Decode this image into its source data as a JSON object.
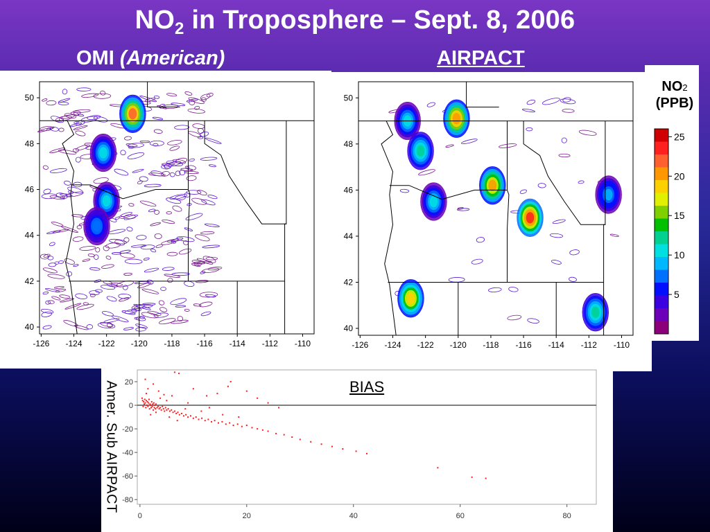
{
  "slide": {
    "title_main": "NO",
    "title_sub": "2",
    "title_rest": " in Troposphere – Sept. 8, 2006",
    "left_label_main": "OMI ",
    "left_label_em": "(American)",
    "right_label": "AIRPACT"
  },
  "colorbar": {
    "title_main": "NO",
    "title_sub": "2",
    "units": "(PPB)",
    "ticks": [
      "25",
      "20",
      "15",
      "10",
      "5"
    ],
    "tick_values": [
      25,
      20,
      15,
      10,
      5
    ],
    "range": [
      0,
      26
    ],
    "colors": [
      "#8c007a",
      "#6b00b8",
      "#3a00e0",
      "#0010ff",
      "#0070ff",
      "#00b8ff",
      "#00e0e0",
      "#00d090",
      "#00c000",
      "#80d000",
      "#e0f000",
      "#ffd000",
      "#ff9800",
      "#ff6030",
      "#ff2020",
      "#d00000"
    ]
  },
  "chart_data": [
    {
      "type": "heatmap",
      "panel": "OMI (American)",
      "xticks": [
        "-126",
        "-124",
        "-122",
        "-120",
        "-118",
        "-116",
        "-114",
        "-112",
        "-110"
      ],
      "yticks": [
        "50",
        "48",
        "46",
        "44",
        "42",
        "40"
      ],
      "xlim": [
        -126.1,
        -109.3
      ],
      "ylim": [
        39.7,
        50.7
      ],
      "hotspots": [
        {
          "lon": -120.4,
          "lat": 49.3,
          "value": 22
        },
        {
          "lon": -122.2,
          "lat": 47.6,
          "value": 11
        },
        {
          "lon": -122.0,
          "lat": 45.5,
          "value": 10
        },
        {
          "lon": -122.6,
          "lat": 44.4,
          "value": 8
        }
      ]
    },
    {
      "type": "heatmap",
      "panel": "AIRPACT",
      "xticks": [
        "-126",
        "-124",
        "-122",
        "-120",
        "-118",
        "-116",
        "-114",
        "-112",
        "-110"
      ],
      "yticks": [
        "50",
        "48",
        "46",
        "44",
        "42",
        "40"
      ],
      "xlim": [
        -126.1,
        -109.3
      ],
      "ylim": [
        39.7,
        50.7
      ],
      "hotspots": [
        {
          "lon": -120.1,
          "lat": 49.1,
          "value": 21
        },
        {
          "lon": -123.1,
          "lat": 49.0,
          "value": 10
        },
        {
          "lon": -122.3,
          "lat": 47.7,
          "value": 12
        },
        {
          "lon": -121.5,
          "lat": 45.5,
          "value": 11
        },
        {
          "lon": -117.9,
          "lat": 46.2,
          "value": 20
        },
        {
          "lon": -115.6,
          "lat": 44.8,
          "value": 24
        },
        {
          "lon": -122.9,
          "lat": 41.3,
          "value": 19
        },
        {
          "lon": -111.6,
          "lat": 40.7,
          "value": 12
        },
        {
          "lon": -110.8,
          "lat": 45.8,
          "value": 9
        }
      ]
    },
    {
      "type": "scatter",
      "title": "BIAS",
      "ylabel": "Amer. Sub AIRPACT",
      "xticks": [
        "0",
        "20",
        "40",
        "60",
        "80"
      ],
      "yticks": [
        "20",
        "0",
        "-20",
        "-40",
        "-60",
        "-80"
      ],
      "xlim": [
        -0.5,
        85.5
      ],
      "ylim": [
        -84,
        30
      ],
      "hline": 0,
      "points": [
        [
          0.4,
          6
        ],
        [
          0.5,
          4
        ],
        [
          0.6,
          -1
        ],
        [
          0.7,
          3
        ],
        [
          0.8,
          1
        ],
        [
          0.9,
          5
        ],
        [
          1.0,
          2
        ],
        [
          1.1,
          -2
        ],
        [
          1.2,
          4
        ],
        [
          1.3,
          0
        ],
        [
          1.4,
          3
        ],
        [
          1.5,
          -1
        ],
        [
          1.6,
          2
        ],
        [
          1.7,
          5
        ],
        [
          1.8,
          -3
        ],
        [
          1.9,
          1
        ],
        [
          2.0,
          0
        ],
        [
          2.1,
          -2
        ],
        [
          2.2,
          3
        ],
        [
          2.3,
          -1
        ],
        [
          2.4,
          1
        ],
        [
          2.5,
          -4
        ],
        [
          2.6,
          2
        ],
        [
          2.7,
          -2
        ],
        [
          2.8,
          0
        ],
        [
          2.9,
          -3
        ],
        [
          3.0,
          1
        ],
        [
          3.2,
          -2
        ],
        [
          3.4,
          -1
        ],
        [
          3.6,
          -3
        ],
        [
          3.8,
          -2
        ],
        [
          4.0,
          -4
        ],
        [
          4.2,
          -1
        ],
        [
          4.4,
          -3
        ],
        [
          4.6,
          -5
        ],
        [
          4.8,
          -2
        ],
        [
          5.0,
          -4
        ],
        [
          5.3,
          -3
        ],
        [
          5.6,
          -5
        ],
        [
          5.9,
          -4
        ],
        [
          6.2,
          -6
        ],
        [
          6.5,
          -5
        ],
        [
          6.8,
          -7
        ],
        [
          7.1,
          -6
        ],
        [
          7.4,
          -8
        ],
        [
          7.8,
          -7
        ],
        [
          8.2,
          -9
        ],
        [
          8.6,
          -8
        ],
        [
          9.0,
          -10
        ],
        [
          9.5,
          -9
        ],
        [
          10.0,
          -11
        ],
        [
          10.5,
          -10
        ],
        [
          11.0,
          -12
        ],
        [
          11.6,
          -11
        ],
        [
          12.2,
          -13
        ],
        [
          12.8,
          -12
        ],
        [
          13.4,
          -14
        ],
        [
          14.0,
          -13
        ],
        [
          14.7,
          -15
        ],
        [
          15.4,
          -14
        ],
        [
          16.1,
          -16
        ],
        [
          16.8,
          -15
        ],
        [
          17.5,
          -17
        ],
        [
          18.3,
          -16
        ],
        [
          19.1,
          -18
        ],
        [
          20.0,
          -17
        ],
        [
          21.0,
          -19
        ],
        [
          22.0,
          -20
        ],
        [
          23.0,
          -21
        ],
        [
          24.0,
          -22
        ],
        [
          25.5,
          -24
        ],
        [
          27.0,
          -25
        ],
        [
          28.5,
          -27
        ],
        [
          30.0,
          -29
        ],
        [
          32.0,
          -31
        ],
        [
          34.0,
          -33
        ],
        [
          36.0,
          -35
        ],
        [
          38.0,
          -37
        ],
        [
          40.5,
          -39
        ],
        [
          42.5,
          -41
        ],
        [
          1.5,
          14
        ],
        [
          3.5,
          12
        ],
        [
          4.5,
          9
        ],
        [
          6.0,
          8
        ],
        [
          2.5,
          18
        ],
        [
          1.0,
          22
        ],
        [
          6.5,
          28
        ],
        [
          7.3,
          27
        ],
        [
          10.0,
          14
        ],
        [
          12.5,
          8
        ],
        [
          14.5,
          10
        ],
        [
          16.5,
          16
        ],
        [
          17.0,
          20
        ],
        [
          20.0,
          12
        ],
        [
          22.0,
          6
        ],
        [
          24.0,
          2
        ],
        [
          26.0,
          -2
        ],
        [
          8.5,
          -3
        ],
        [
          11.5,
          -5
        ],
        [
          15.5,
          -8
        ],
        [
          18.5,
          -10
        ],
        [
          3.0,
          -6
        ],
        [
          5.5,
          -10
        ],
        [
          7.0,
          -13
        ],
        [
          2.0,
          -8
        ],
        [
          1.2,
          10
        ],
        [
          3.8,
          6
        ],
        [
          5.0,
          4
        ],
        [
          9.0,
          2
        ],
        [
          13.0,
          -2
        ],
        [
          55.8,
          -53
        ],
        [
          62.2,
          -61
        ],
        [
          64.8,
          -62
        ]
      ]
    }
  ]
}
